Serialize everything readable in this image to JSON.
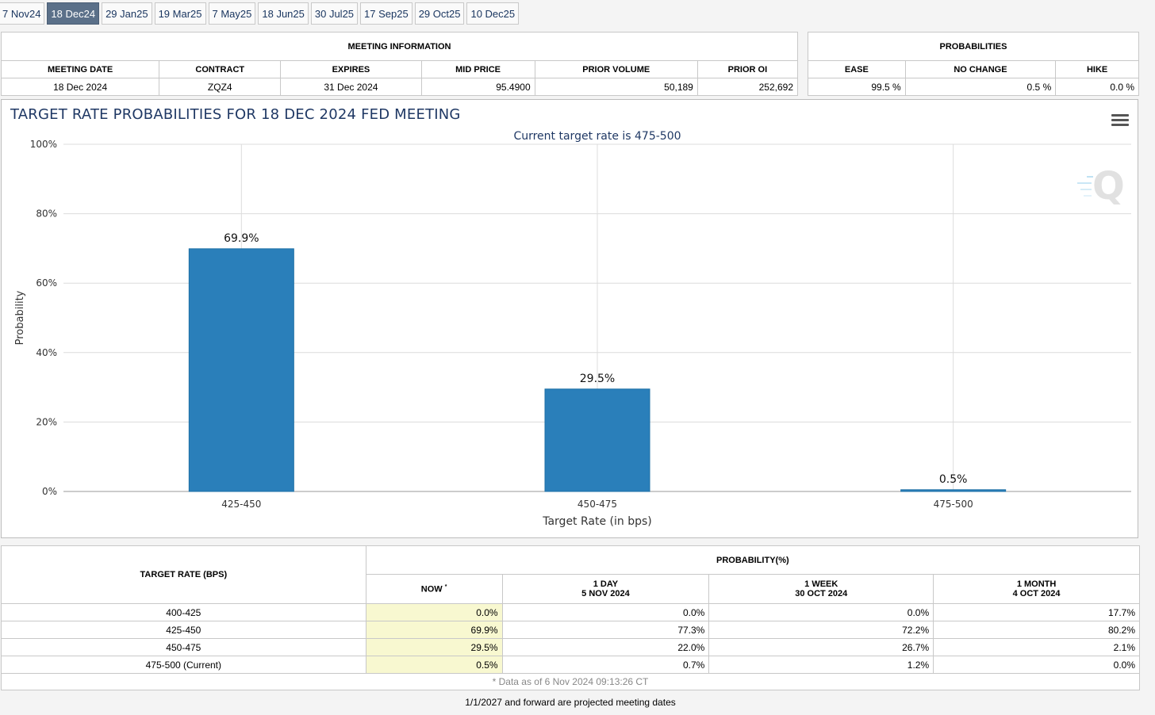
{
  "tabs": [
    "7 Nov24",
    "18 Dec24",
    "29 Jan25",
    "19 Mar25",
    "7 May25",
    "18 Jun25",
    "30 Jul25",
    "17 Sep25",
    "29 Oct25",
    "10 Dec25"
  ],
  "active_tab": "18 Dec24",
  "meeting_info": {
    "caption": "MEETING INFORMATION",
    "headers": [
      "MEETING DATE",
      "CONTRACT",
      "EXPIRES",
      "MID PRICE",
      "PRIOR VOLUME",
      "PRIOR OI"
    ],
    "values": [
      "18 Dec 2024",
      "ZQZ4",
      "31 Dec 2024",
      "95.4900",
      "50,189",
      "252,692"
    ]
  },
  "probabilities": {
    "caption": "PROBABILITIES",
    "headers": [
      "EASE",
      "NO CHANGE",
      "HIKE"
    ],
    "values": [
      "99.5 %",
      "0.5 %",
      "0.0 %"
    ]
  },
  "chart_data": {
    "type": "bar",
    "title": "TARGET RATE PROBABILITIES FOR 18 DEC 2024 FED MEETING",
    "subtitle": "Current target rate is 475-500",
    "categories": [
      "425-450",
      "450-475",
      "475-500"
    ],
    "values": [
      69.9,
      29.5,
      0.5
    ],
    "data_labels": [
      "69.9%",
      "29.5%",
      "0.5%"
    ],
    "xlabel": "Target Rate (in bps)",
    "ylabel": "Probability",
    "ylim": [
      0,
      100
    ],
    "yticks": [
      0,
      20,
      40,
      60,
      80,
      100
    ],
    "ytick_labels": [
      "0%",
      "20%",
      "40%",
      "60%",
      "80%",
      "100%"
    ],
    "grid": true,
    "bar_color": "#2a7fba"
  },
  "prob_table": {
    "rate_header": "TARGET RATE (BPS)",
    "prob_header": "PROBABILITY(%)",
    "now_label": "NOW",
    "now_mark": "*",
    "columns": [
      {
        "line1": "1 DAY",
        "line2": "5 NOV 2024"
      },
      {
        "line1": "1 WEEK",
        "line2": "30 OCT 2024"
      },
      {
        "line1": "1 MONTH",
        "line2": "4 OCT 2024"
      }
    ],
    "rows": [
      {
        "rate": "400-425",
        "now": "0.0%",
        "d1": "0.0%",
        "w1": "0.0%",
        "m1": "17.7%"
      },
      {
        "rate": "425-450",
        "now": "69.9%",
        "d1": "77.3%",
        "w1": "72.2%",
        "m1": "80.2%"
      },
      {
        "rate": "450-475",
        "now": "29.5%",
        "d1": "22.0%",
        "w1": "26.7%",
        "m1": "2.1%"
      },
      {
        "rate": "475-500 (Current)",
        "now": "0.5%",
        "d1": "0.7%",
        "w1": "1.2%",
        "m1": "0.0%"
      }
    ],
    "note": "* Data as of 6 Nov 2024 09:13:26 CT"
  },
  "footer": "1/1/2027 and forward are projected meeting dates"
}
